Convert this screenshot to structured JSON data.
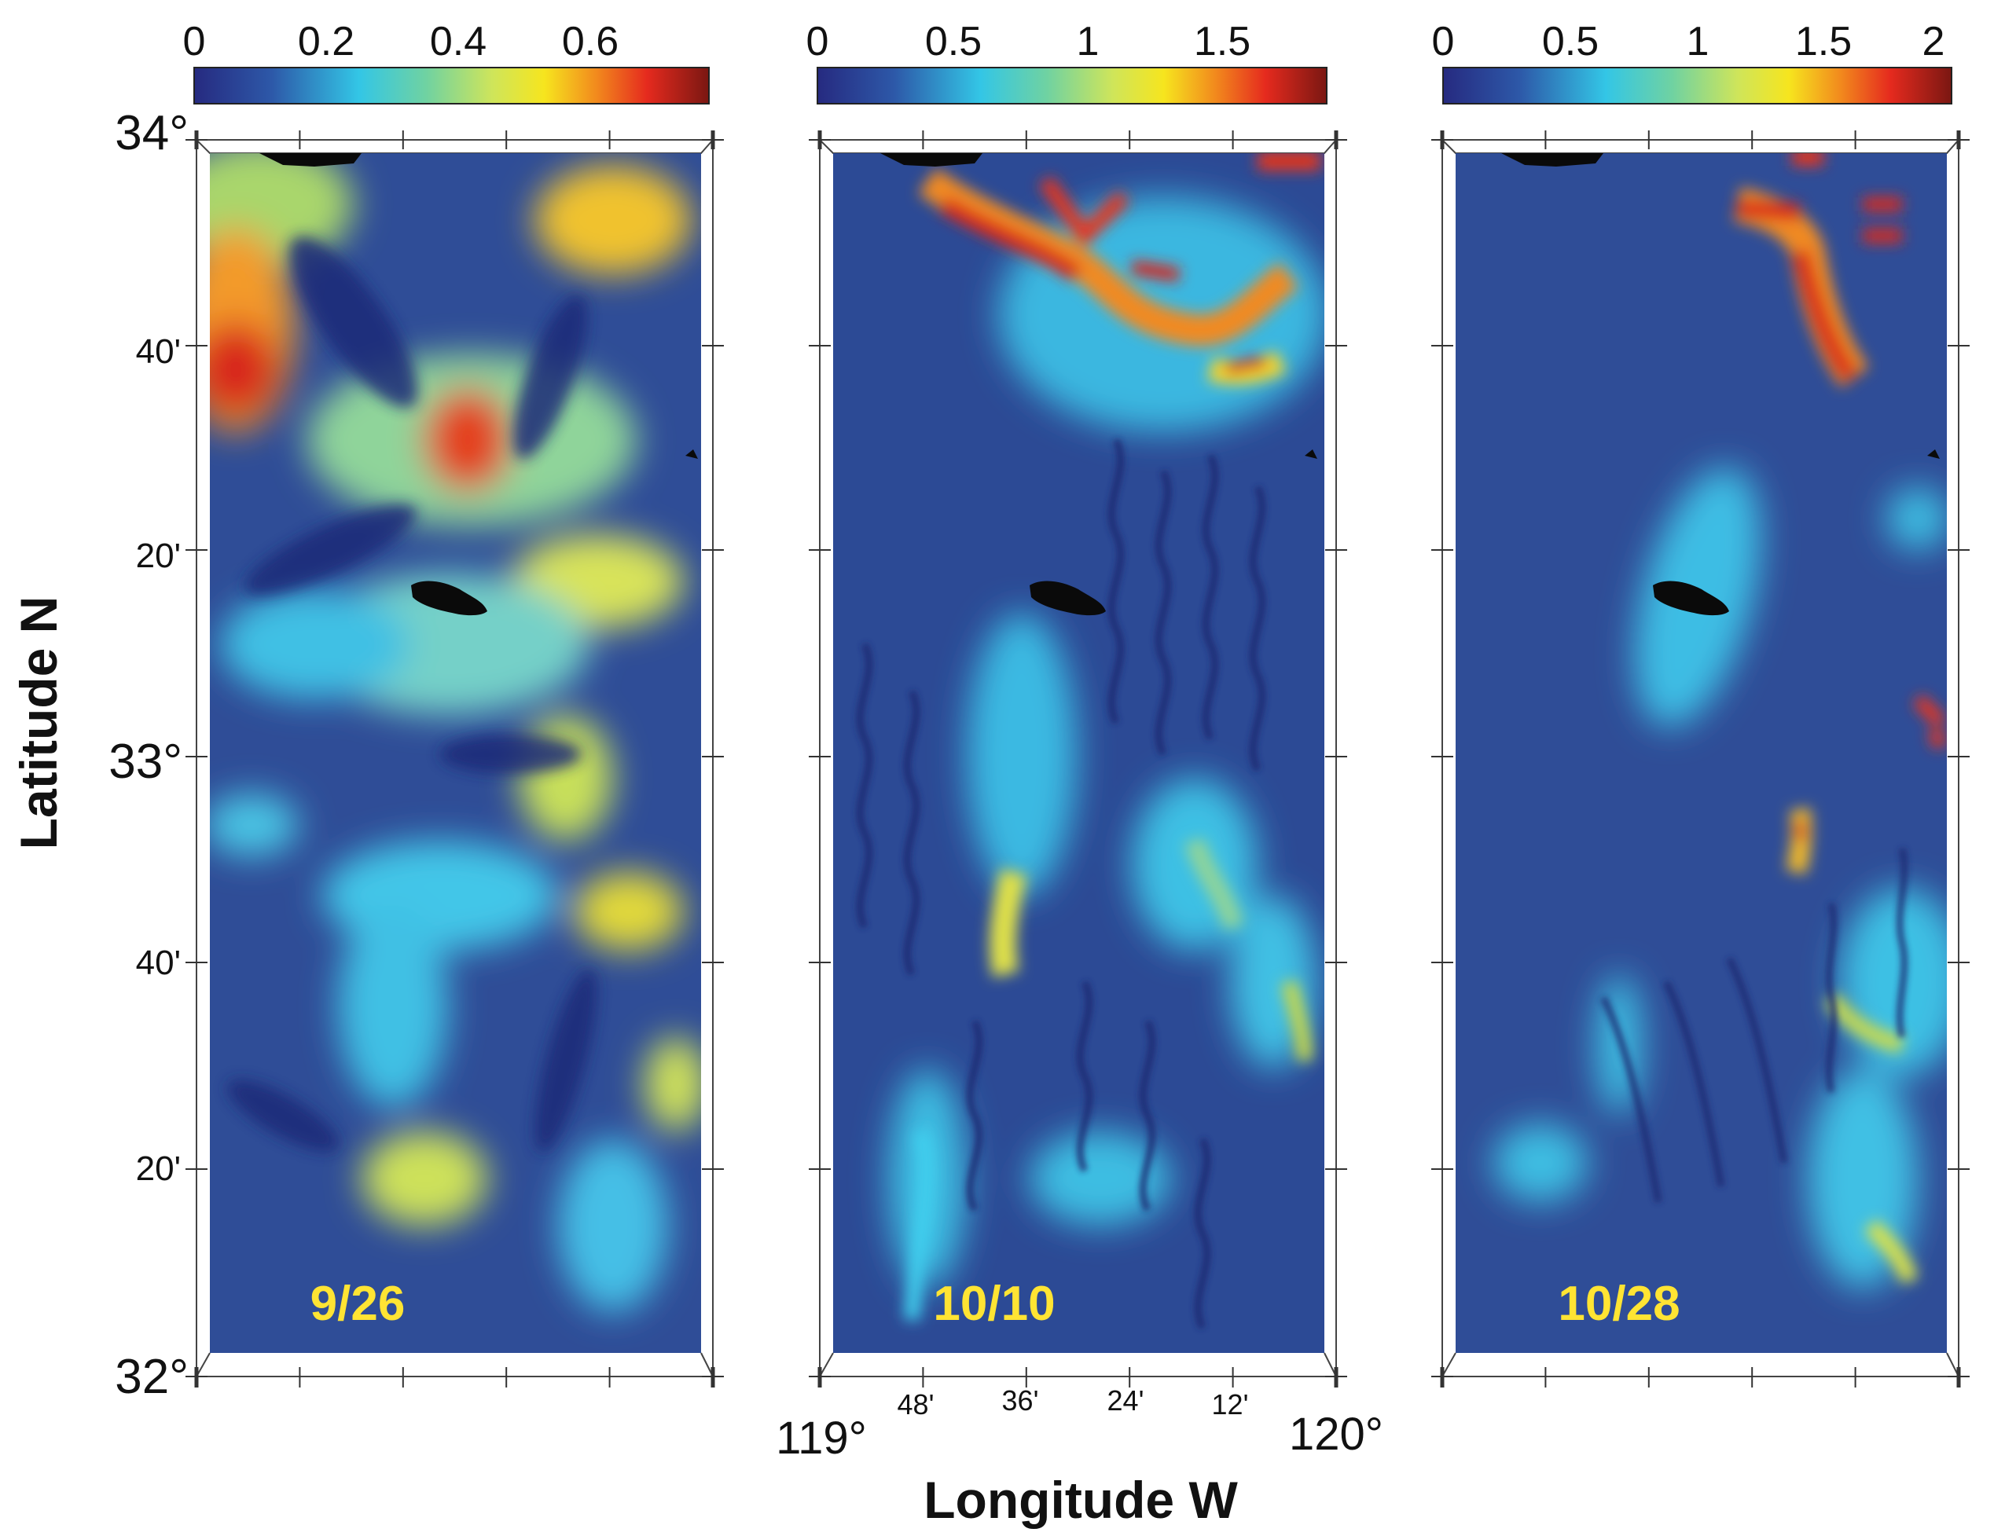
{
  "axes": {
    "ylabel": "Latitude  N",
    "xlabel": "Longitude  W",
    "lat_ticks": [
      "34°",
      "40'",
      "20'",
      "33°",
      "40'",
      "20'",
      "32°"
    ],
    "lon_ticks": [
      "119°",
      "48'",
      "36'",
      "24'",
      "12'",
      "120°"
    ]
  },
  "panels": [
    {
      "date": "9/26",
      "colorbar": {
        "ticks": [
          "0",
          "0.2",
          "0.4",
          "0.6"
        ],
        "tick_values": [
          0,
          0.2,
          0.4,
          0.6
        ],
        "range": [
          0,
          0.78
        ]
      }
    },
    {
      "date": "10/10",
      "colorbar": {
        "ticks": [
          "0",
          "0.5",
          "1",
          "1.5"
        ],
        "tick_values": [
          0,
          0.5,
          1,
          1.5
        ],
        "range": [
          0,
          2.0
        ]
      }
    },
    {
      "date": "10/28",
      "colorbar": {
        "ticks": [
          "0",
          "0.5",
          "1",
          "1.5",
          "2"
        ],
        "tick_values": [
          0,
          0.5,
          1,
          1.5,
          2
        ],
        "range": [
          0,
          2.1
        ]
      }
    }
  ],
  "colors": {
    "colormap": [
      "#262a80",
      "#2d58a8",
      "#33c6e6",
      "#6fd2a2",
      "#cfe55a",
      "#f6e51e",
      "#f28b1d",
      "#e52a1e",
      "#7a1712"
    ],
    "ocean_base": "#2f4d97",
    "land": "#0a0a0a",
    "date_label": "#ffe433"
  }
}
